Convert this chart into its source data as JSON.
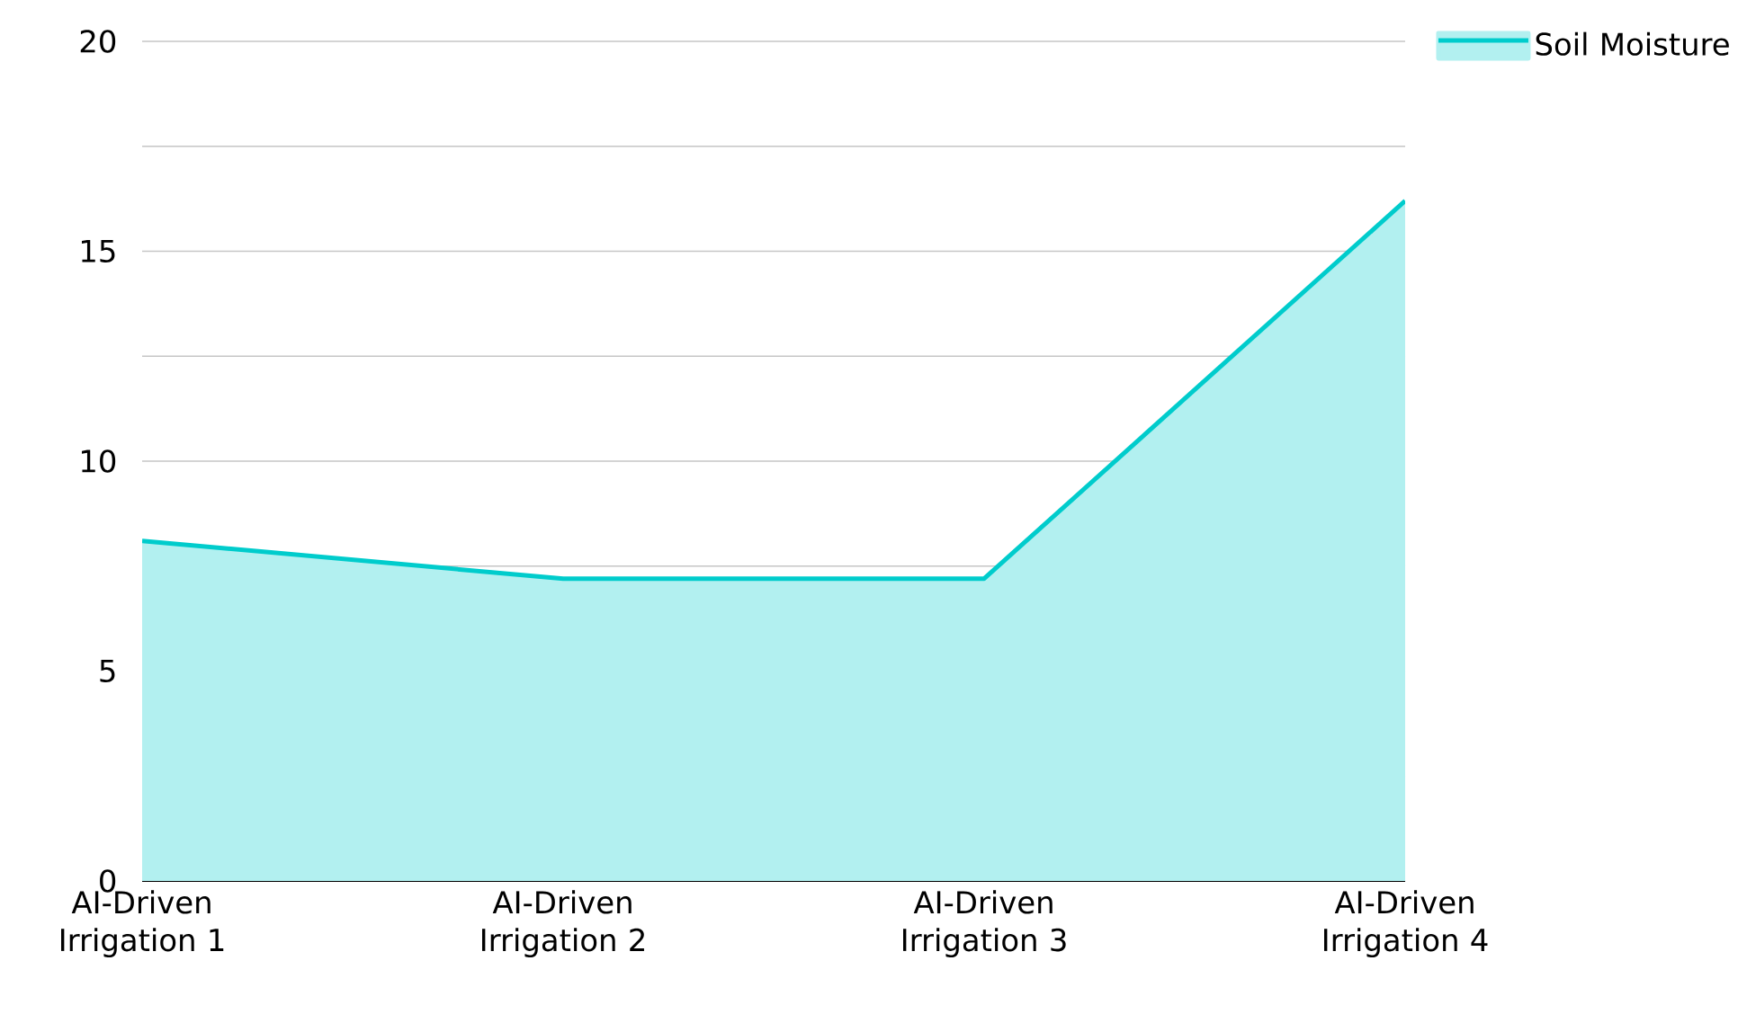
{
  "chart_data": {
    "type": "area",
    "categories": [
      "AI-Driven Irrigation 1",
      "AI-Driven Irrigation 2",
      "AI-Driven Irrigation 3",
      "AI-Driven Irrigation 4"
    ],
    "series": [
      {
        "name": "Soil Moisture",
        "color": "#00cccc",
        "values": [
          8.1,
          7.2,
          7.2,
          16.2
        ]
      }
    ],
    "ylim": [
      0,
      20
    ],
    "yticks": [
      0,
      {
        "value": 2.5,
        "label": null
      },
      5,
      {
        "value": 7.5,
        "label": null
      },
      10,
      {
        "value": 12.5,
        "label": null
      },
      15,
      {
        "value": 17.5,
        "label": null
      },
      20
    ],
    "grid": "y",
    "legend": "top right"
  }
}
